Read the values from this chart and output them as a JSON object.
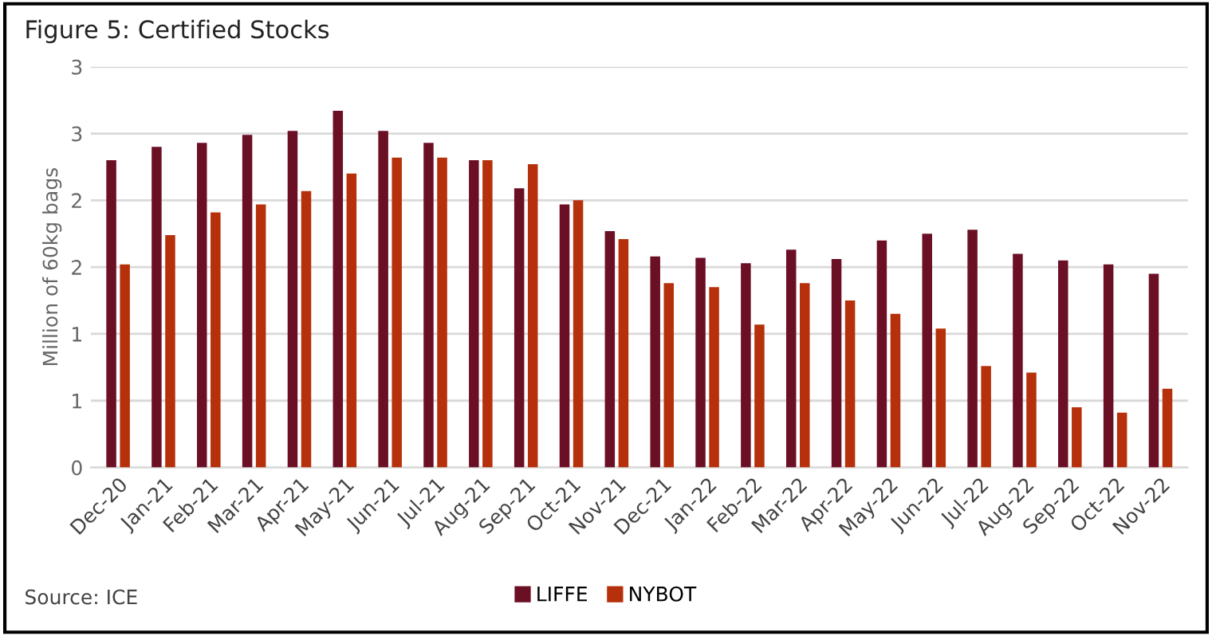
{
  "chart_data": {
    "type": "bar",
    "title": "Figure 5: Certified Stocks",
    "ylabel": "Million of 60kg bags",
    "categories": [
      "Dec-20",
      "Jan-21",
      "Feb-21",
      "Mar-21",
      "Apr-21",
      "May-21",
      "Jun-21",
      "Jul-21",
      "Aug-21",
      "Sep-21",
      "Oct-21",
      "Nov-21",
      "Dec-21",
      "Jan-22",
      "Feb-22",
      "Mar-22",
      "Apr-22",
      "May-22",
      "Jun-22",
      "Jul-22",
      "Aug-22",
      "Sep-22",
      "Oct-22",
      "Nov-22"
    ],
    "series": [
      {
        "name": "LIFFE",
        "color": "#6b0f24",
        "values": [
          2.3,
          2.4,
          2.43,
          2.49,
          2.52,
          2.67,
          2.52,
          2.43,
          2.3,
          2.09,
          1.97,
          1.77,
          1.58,
          1.57,
          1.53,
          1.63,
          1.56,
          1.7,
          1.75,
          1.78,
          1.6,
          1.55,
          1.52,
          1.45
        ]
      },
      {
        "name": "NYBOT",
        "color": "#b5300b",
        "values": [
          1.52,
          1.74,
          1.91,
          1.97,
          2.07,
          2.2,
          2.32,
          2.32,
          2.3,
          2.27,
          2.0,
          1.71,
          1.38,
          1.35,
          1.07,
          1.38,
          1.25,
          1.15,
          1.04,
          0.76,
          0.71,
          0.45,
          0.41,
          0.59
        ]
      }
    ],
    "ylim": [
      0,
      3
    ],
    "yticks": [
      0,
      {
        "value": 0.5,
        "label": "1"
      },
      1,
      {
        "value": 1.5,
        "label": "2"
      },
      2,
      {
        "value": 2.5,
        "label": "3"
      },
      3
    ],
    "grid": "y",
    "legend": "bottom",
    "annotations": [
      "Source: ICE"
    ]
  }
}
